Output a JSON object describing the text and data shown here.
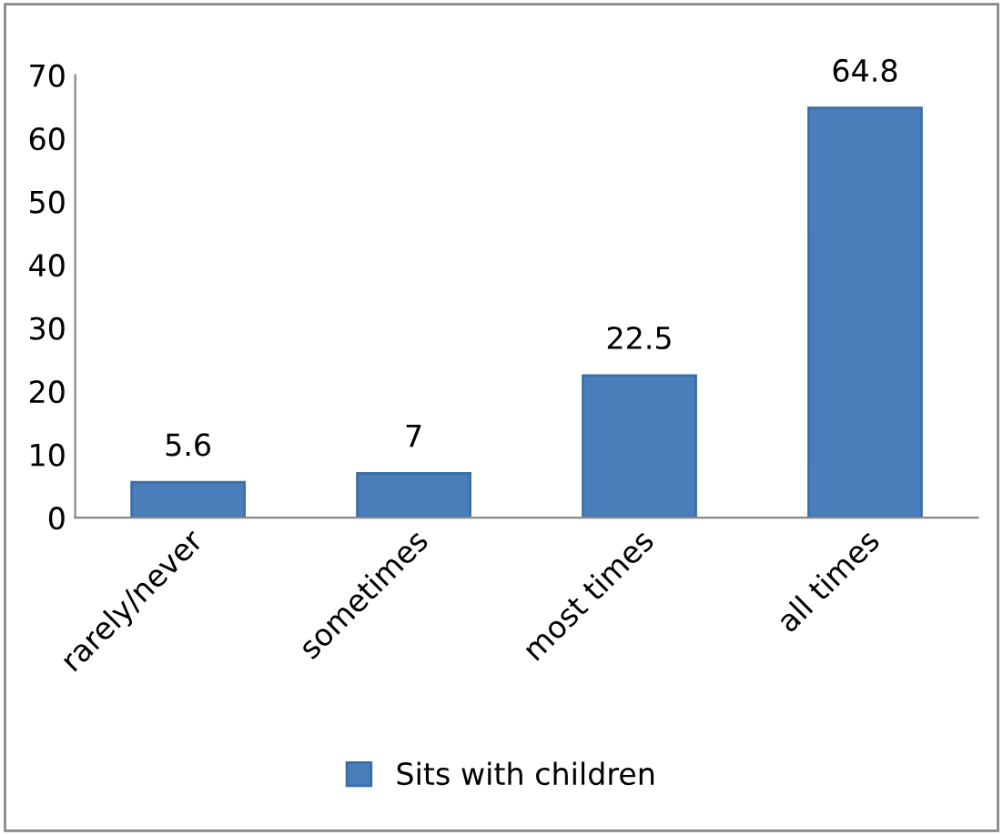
{
  "chart_data": {
    "type": "bar",
    "categories": [
      "rarely/never",
      "sometimes",
      "most times",
      "all times"
    ],
    "series": [
      {
        "name": "Sits with children",
        "color": "#4a7ebb",
        "values": [
          5.6,
          7,
          22.5,
          64.8
        ]
      }
    ],
    "ylim": [
      0,
      70
    ],
    "yticks": [
      0,
      10,
      20,
      30,
      40,
      50,
      60,
      70
    ],
    "data_labels": true,
    "grid": false,
    "legend": "bottom"
  }
}
